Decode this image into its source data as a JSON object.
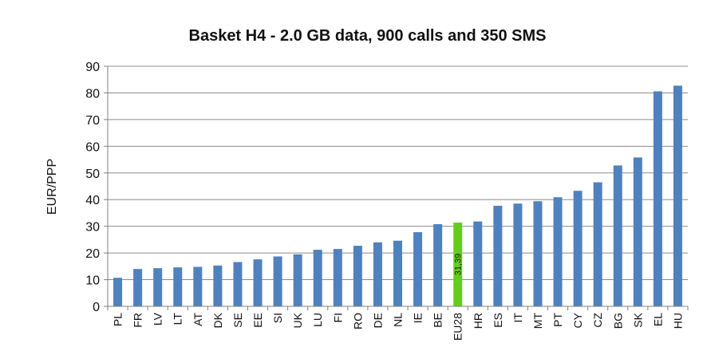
{
  "chart_data": {
    "type": "bar",
    "title": "Basket H4 - 2.0 GB data, 900 calls and 350 SMS",
    "xlabel": "",
    "ylabel": "EUR/PPP",
    "ylim": [
      0,
      90
    ],
    "yticks": [
      0,
      10,
      20,
      30,
      40,
      50,
      60,
      70,
      80,
      90
    ],
    "grid": true,
    "categories": [
      "PL",
      "FR",
      "LV",
      "LT",
      "AT",
      "DK",
      "SE",
      "EE",
      "SI",
      "UK",
      "LU",
      "FI",
      "RO",
      "DE",
      "NL",
      "IE",
      "BE",
      "EU28",
      "HR",
      "ES",
      "IT",
      "MT",
      "PT",
      "CY",
      "CZ",
      "BG",
      "SK",
      "EL",
      "HU"
    ],
    "values": [
      10.7,
      14.0,
      14.3,
      14.6,
      14.8,
      15.3,
      16.6,
      17.6,
      18.7,
      19.5,
      21.2,
      21.5,
      22.7,
      24.0,
      24.6,
      27.8,
      30.8,
      31.39,
      31.8,
      37.7,
      38.5,
      39.4,
      40.9,
      43.3,
      46.5,
      52.8,
      55.8,
      80.6,
      82.7
    ],
    "highlight": {
      "category": "EU28",
      "label": "31,39",
      "color": "#66cc1a"
    },
    "colors": {
      "bar": "#4f81bd",
      "highlight": "#66cc1a",
      "grid": "#8c8c8c"
    }
  }
}
